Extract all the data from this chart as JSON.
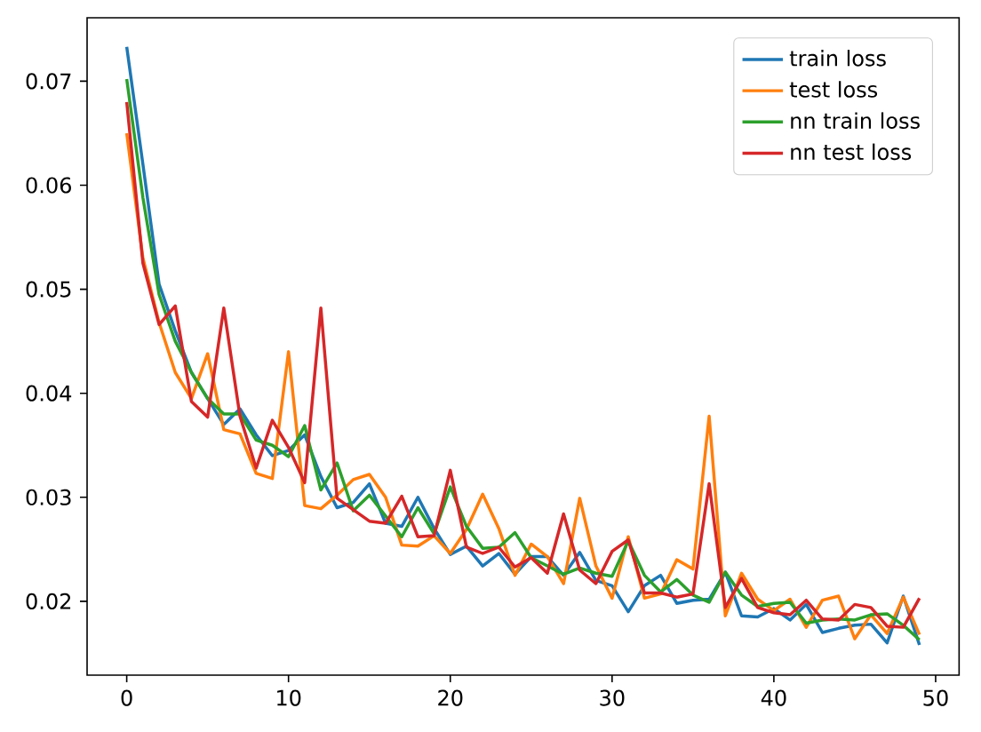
{
  "chart_data": {
    "type": "line",
    "x": [
      0,
      1,
      2,
      3,
      4,
      5,
      6,
      7,
      8,
      9,
      10,
      11,
      12,
      13,
      14,
      15,
      16,
      17,
      18,
      19,
      20,
      21,
      22,
      23,
      24,
      25,
      26,
      27,
      28,
      29,
      30,
      31,
      32,
      33,
      34,
      35,
      36,
      37,
      38,
      39,
      40,
      41,
      42,
      43,
      44,
      45,
      46,
      47,
      48,
      49
    ],
    "series": [
      {
        "name": "train loss",
        "color": "#1f77b4",
        "values": [
          0.0733,
          0.062,
          0.0505,
          0.046,
          0.042,
          0.0395,
          0.037,
          0.0385,
          0.036,
          0.034,
          0.0345,
          0.036,
          0.032,
          0.029,
          0.0295,
          0.0313,
          0.0275,
          0.0272,
          0.03,
          0.027,
          0.0245,
          0.0253,
          0.0234,
          0.0246,
          0.0226,
          0.0243,
          0.0243,
          0.0225,
          0.0247,
          0.022,
          0.0215,
          0.019,
          0.0215,
          0.0225,
          0.0198,
          0.0201,
          0.0202,
          0.0228,
          0.0186,
          0.0185,
          0.0193,
          0.0182,
          0.0197,
          0.017,
          0.0174,
          0.0177,
          0.0178,
          0.016,
          0.0205,
          0.0158
        ]
      },
      {
        "name": "test loss",
        "color": "#ff7f0e",
        "values": [
          0.065,
          0.053,
          0.0468,
          0.042,
          0.0395,
          0.0438,
          0.0365,
          0.0361,
          0.0323,
          0.0318,
          0.044,
          0.0292,
          0.0289,
          0.0302,
          0.0317,
          0.0322,
          0.03,
          0.0254,
          0.0253,
          0.0263,
          0.0246,
          0.0269,
          0.0303,
          0.027,
          0.0225,
          0.0255,
          0.0243,
          0.0217,
          0.0299,
          0.0234,
          0.0203,
          0.0262,
          0.0203,
          0.0207,
          0.024,
          0.0231,
          0.0378,
          0.0186,
          0.0227,
          0.0202,
          0.0191,
          0.0202,
          0.0175,
          0.0201,
          0.0205,
          0.0164,
          0.0187,
          0.0169,
          0.0204,
          0.0168
        ]
      },
      {
        "name": "nn train loss",
        "color": "#2ca02c",
        "values": [
          0.0702,
          0.0588,
          0.0495,
          0.045,
          0.042,
          0.0395,
          0.038,
          0.038,
          0.0355,
          0.035,
          0.0339,
          0.0369,
          0.0307,
          0.0333,
          0.0287,
          0.0302,
          0.0282,
          0.0262,
          0.029,
          0.0265,
          0.031,
          0.0272,
          0.0251,
          0.0252,
          0.0266,
          0.0242,
          0.0234,
          0.0226,
          0.0232,
          0.0227,
          0.0224,
          0.0258,
          0.0225,
          0.0209,
          0.0221,
          0.0206,
          0.0199,
          0.0228,
          0.0206,
          0.0195,
          0.0198,
          0.0199,
          0.0179,
          0.0182,
          0.0183,
          0.0182,
          0.0187,
          0.0188,
          0.0177,
          0.0163
        ]
      },
      {
        "name": "nn test loss",
        "color": "#d62728",
        "values": [
          0.068,
          0.0525,
          0.0466,
          0.0484,
          0.0392,
          0.0377,
          0.0482,
          0.0378,
          0.0328,
          0.0374,
          0.0348,
          0.0314,
          0.0482,
          0.0299,
          0.0288,
          0.0277,
          0.0275,
          0.0301,
          0.0262,
          0.0263,
          0.0326,
          0.0252,
          0.0246,
          0.0252,
          0.0233,
          0.0242,
          0.0227,
          0.0284,
          0.023,
          0.0217,
          0.0248,
          0.0259,
          0.0208,
          0.0208,
          0.0204,
          0.0207,
          0.0313,
          0.0194,
          0.0222,
          0.0194,
          0.0189,
          0.0187,
          0.0201,
          0.0183,
          0.0182,
          0.0197,
          0.0194,
          0.0176,
          0.0175,
          0.0203
        ]
      }
    ],
    "xlim": [
      -2.45,
      51.45
    ],
    "ylim": [
      0.0129,
      0.0761
    ],
    "xticks": [
      0,
      10,
      20,
      30,
      40,
      50
    ],
    "yticks": [
      0.02,
      0.03,
      0.04,
      0.05,
      0.06,
      0.07
    ],
    "legend": "top right",
    "line_style": "solid"
  }
}
